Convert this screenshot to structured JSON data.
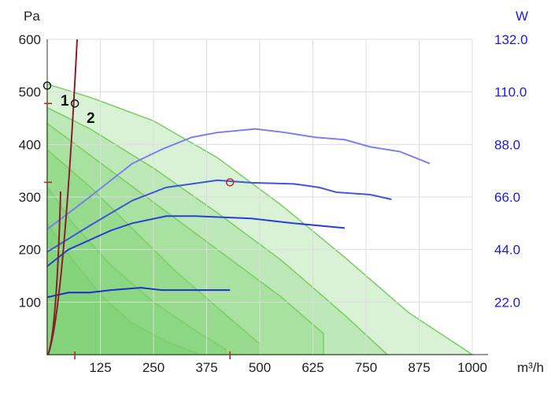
{
  "chart_data": {
    "type": "line",
    "title": "",
    "y_unit_left": "Pa",
    "y_unit_right": "W",
    "x_unit": "m³/h",
    "xlim": [
      0,
      1000
    ],
    "ylim_left": [
      0,
      600
    ],
    "ylim_right": [
      0,
      132
    ],
    "grid": true,
    "x_ticks": [
      "125",
      "250",
      "375",
      "500",
      "625",
      "750",
      "875",
      "1000"
    ],
    "y_ticks_left": [
      "100",
      "200",
      "300",
      "400",
      "500",
      "600"
    ],
    "y_ticks_right": [
      "22.0",
      "44.0",
      "66.0",
      "88.0",
      "110.0",
      "132.0"
    ],
    "fan_curves_pa": [
      {
        "x": [
          0,
          100,
          250,
          400,
          550,
          700,
          850,
          1000
        ],
        "y": [
          515,
          490,
          445,
          375,
          285,
          185,
          80,
          0
        ]
      },
      {
        "x": [
          0,
          100,
          250,
          400,
          550,
          700,
          800
        ],
        "y": [
          470,
          430,
          355,
          270,
          180,
          75,
          0
        ]
      },
      {
        "x": [
          0,
          100,
          250,
          400,
          550,
          650
        ],
        "y": [
          440,
          380,
          290,
          200,
          110,
          40
        ]
      },
      {
        "x": [
          0,
          100,
          200,
          300,
          400,
          500
        ],
        "y": [
          390,
          320,
          240,
          160,
          90,
          20
        ]
      },
      {
        "x": [
          0,
          60,
          150,
          250,
          350,
          420
        ],
        "y": [
          320,
          250,
          170,
          100,
          45,
          10
        ]
      },
      {
        "x": [
          0,
          60,
          130,
          200,
          280,
          360
        ],
        "y": [
          250,
          180,
          110,
          60,
          25,
          0
        ]
      }
    ],
    "power_curves_w": [
      {
        "x": [
          0,
          100,
          200,
          270,
          340,
          400,
          490,
          560,
          630,
          700,
          760,
          830,
          900
        ],
        "y": [
          52.5,
          66,
          80,
          86,
          91,
          93,
          94.5,
          93,
          91,
          90,
          87,
          85,
          80
        ]
      },
      {
        "x": [
          0,
          100,
          200,
          280,
          340,
          400,
          480,
          580,
          640,
          680,
          760,
          810
        ],
        "y": [
          43,
          54,
          64.5,
          70,
          71.5,
          73,
          72,
          71.5,
          70,
          68,
          67,
          65
        ]
      },
      {
        "x": [
          0,
          50,
          100,
          150,
          200,
          280,
          350,
          480,
          580,
          700
        ],
        "y": [
          37,
          44,
          48,
          52,
          55,
          58,
          58,
          57,
          55,
          53
        ]
      },
      {
        "x": [
          0,
          50,
          100,
          150,
          220,
          270,
          350,
          430
        ],
        "y": [
          24,
          26,
          26,
          27,
          28,
          27,
          27,
          27
        ]
      }
    ],
    "operating_points": [
      {
        "x": 0,
        "y": 512
      },
      {
        "x": 65,
        "y": 478
      },
      {
        "x": 430,
        "y": 328
      }
    ],
    "marker_labels": [
      "1",
      "2"
    ]
  }
}
